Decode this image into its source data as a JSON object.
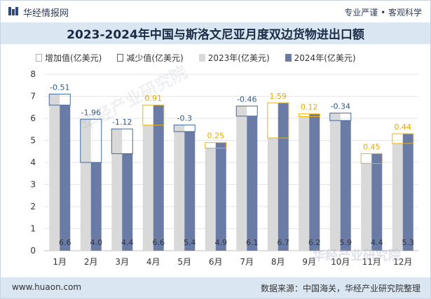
{
  "header": {
    "brand": "华经情报网",
    "tagline": "专业严谨 • 客观科学"
  },
  "legend": {
    "increase": "增加值(亿美元)",
    "decrease": "减少值(亿美元)",
    "y2023": "2023年(亿美元)",
    "y2024": "2024年(亿美元)"
  },
  "watermark": {
    "text": "华经产业研究院",
    "footer_mark": "华经产业研究院"
  },
  "footer": {
    "left": "www.huaon.com",
    "right": "数据来源：中国海关，华经产业研究院整理"
  },
  "colors": {
    "bar2023": "#d9d9d9",
    "bar2024": "#6a7ca6",
    "increase": "#f0b400",
    "decrease": "#3e6a9e",
    "header_band": "#dbe6f3"
  },
  "chart_data": {
    "type": "bar",
    "title": "2023-2024年中国与斯洛文尼亚月度双边货物进出口额",
    "categories": [
      "1月",
      "2月",
      "3月",
      "4月",
      "5月",
      "6月",
      "7月",
      "8月",
      "9月",
      "10月",
      "11月",
      "12月"
    ],
    "series": [
      {
        "name": "2023年(亿美元)",
        "values": [
          7.1,
          5.96,
          5.52,
          5.69,
          5.7,
          4.65,
          6.56,
          5.11,
          6.08,
          6.24,
          3.95,
          4.86
        ]
      },
      {
        "name": "2024年(亿美元)",
        "values": [
          6.6,
          4.0,
          4.4,
          6.6,
          5.4,
          4.9,
          6.1,
          6.7,
          6.2,
          5.9,
          4.4,
          5.3
        ]
      }
    ],
    "change": {
      "labels": [
        "-0.51",
        "-1.96",
        "-1.12",
        "0.91",
        "-0.3",
        "0.25",
        "-0.46",
        "1.59",
        "0.12",
        "-0.34",
        "0.45",
        "0.44"
      ],
      "values": [
        -0.51,
        -1.96,
        -1.12,
        0.91,
        -0.3,
        0.25,
        -0.46,
        1.59,
        0.12,
        -0.34,
        0.45,
        0.44
      ]
    },
    "bar_labels_2024": [
      "6.6",
      "4.0",
      "4.4",
      "6.6",
      "5.4",
      "4.9",
      "6.1",
      "6.7",
      "6.2",
      "5.9",
      "4.4",
      "5.3"
    ],
    "y_ticks": [
      "0",
      "1",
      "2",
      "3",
      "4",
      "5",
      "6",
      "7",
      "8"
    ],
    "ylim": [
      0,
      8
    ],
    "grid": true,
    "legend_position": "top"
  }
}
